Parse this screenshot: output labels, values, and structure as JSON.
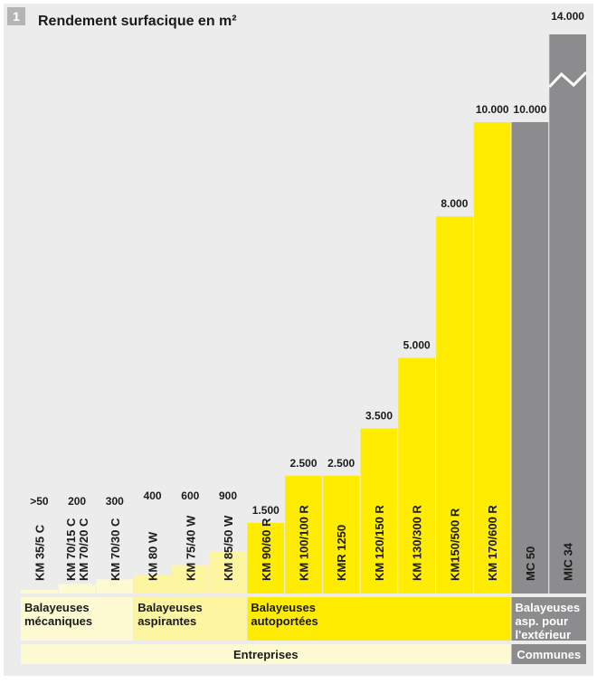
{
  "figure": {
    "number": "1",
    "title": "Rendement surfacique en m²"
  },
  "chart_data": {
    "type": "bar",
    "title": "Rendement surfacique en m²",
    "categories": [
      "KM 35/5 C",
      "KM 70/15 C KM 70/20 C",
      "KM 70/30 C",
      "KM 80 W",
      "KM 75/40 W",
      "KM 85/50 W",
      "KM 90/60 R",
      "KM 100/100 R",
      "KMR 1250",
      "KM 120/150 R",
      "KM 130/300 R",
      "KM150/500 R",
      "KM 170/600 R",
      "MC 50",
      "MIC 34"
    ],
    "values": [
      50,
      200,
      300,
      400,
      600,
      900,
      1500,
      2500,
      2500,
      3500,
      5000,
      8000,
      10000,
      10000,
      14000
    ],
    "value_labels": [
      ">50",
      "200",
      "300",
      "400",
      "600",
      "900",
      "1.500",
      "2.500",
      "2.500",
      "3.500",
      "5.000",
      "8.000",
      "10.000",
      "10.000",
      "14.000"
    ],
    "bar_colors": [
      "#fefbd3",
      "#fefbd3",
      "#fefbd3",
      "#fdf5a0",
      "#fdf5a0",
      "#fdf5a0",
      "#ffec00",
      "#ffec00",
      "#ffec00",
      "#ffec00",
      "#ffec00",
      "#ffec00",
      "#ffec00",
      "#8c8c8e",
      "#8c8c8e"
    ],
    "axis_break": "MIC 34",
    "ylim": [
      0,
      10000
    ],
    "groups": [
      {
        "label": "Balayeuses mécaniques",
        "from": 0,
        "to": 2,
        "color": "#fefbd3"
      },
      {
        "label": "Balayeuses aspirantes",
        "from": 3,
        "to": 5,
        "color": "#fdf5a0"
      },
      {
        "label": "Balayeuses autoportées",
        "from": 6,
        "to": 12,
        "color": "#ffec00"
      },
      {
        "label": "Balayeuses asp. pour l'extérieur",
        "from": 13,
        "to": 14,
        "color": "#8c8c8e"
      }
    ],
    "segments": [
      {
        "label": "Entreprises",
        "from": 0,
        "to": 12,
        "color": "#fefbd3"
      },
      {
        "label": "Communes",
        "from": 13,
        "to": 14,
        "color": "#8c8c8e"
      }
    ]
  },
  "colors": {
    "background": "#ececec",
    "number_badge": "#b4b4b4",
    "text": "#1a1a1a"
  }
}
